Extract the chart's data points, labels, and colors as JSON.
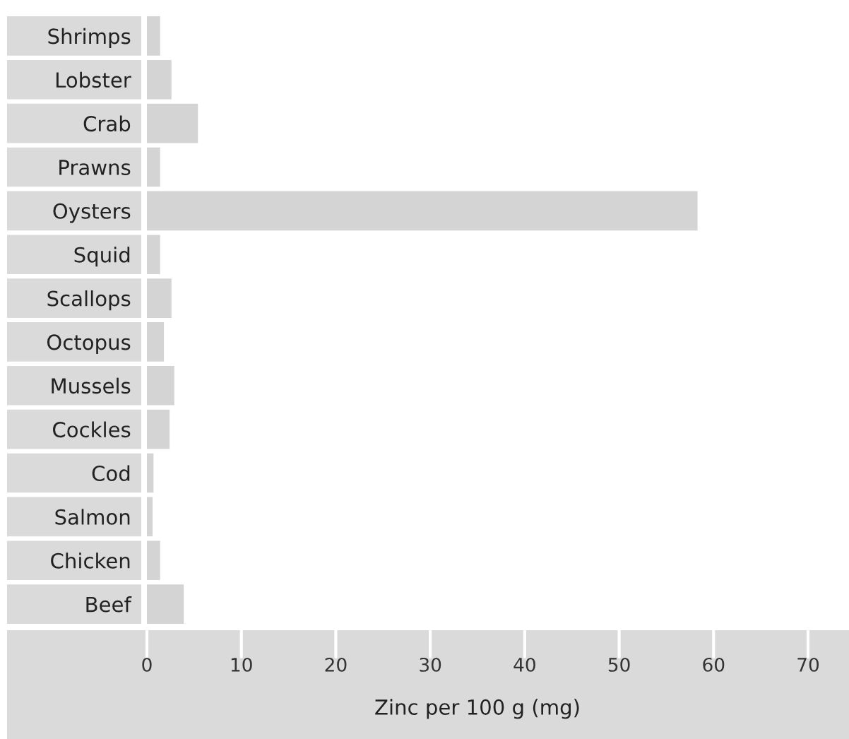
{
  "chart_data": {
    "type": "bar",
    "orientation": "horizontal",
    "xlabel": "Zinc per 100 g (mg)",
    "categories": [
      "Shrimps",
      "Lobster",
      "Crab",
      "Prawns",
      "Oysters",
      "Squid",
      "Scallops",
      "Octopus",
      "Mussels",
      "Cockles",
      "Cod",
      "Salmon",
      "Chicken",
      "Beef"
    ],
    "values": [
      1.4,
      2.6,
      5.4,
      1.4,
      58.3,
      1.4,
      2.6,
      1.8,
      2.9,
      2.4,
      0.7,
      0.6,
      1.4,
      3.9
    ],
    "color": "#d4d4d4",
    "xlim": [
      0,
      70
    ],
    "xticks": [
      0,
      10,
      20,
      30,
      40,
      50,
      60,
      70
    ],
    "grid": false,
    "legend": false
  }
}
